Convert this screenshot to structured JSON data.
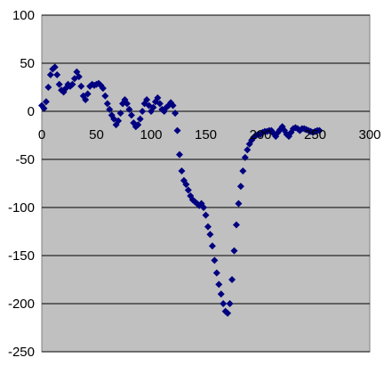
{
  "colors": {
    "plot_background": "#c0c0c0",
    "gridline": "#000000",
    "marker": "#000080"
  },
  "chart_data": {
    "type": "scatter",
    "marker": "diamond",
    "grid": "horizontal",
    "legend": "none",
    "title": "",
    "xlabel": "",
    "ylabel": "",
    "xlim": [
      0,
      300
    ],
    "ylim": [
      -250,
      100
    ],
    "x_ticks": [
      0,
      50,
      100,
      150,
      200,
      250,
      300
    ],
    "x_tick_labels": [
      "0",
      "50",
      "100",
      "150",
      "200",
      "250",
      "300"
    ],
    "y_ticks": [
      100,
      50,
      0,
      -50,
      -100,
      -150,
      -200,
      -250
    ],
    "y_tick_labels": [
      "100",
      "50",
      "0",
      "-50",
      "-100",
      "-150",
      "-200",
      "-250"
    ],
    "series": [
      {
        "x": [
          0,
          2,
          4,
          6,
          8,
          10,
          12,
          14,
          16,
          18,
          20,
          22,
          24,
          26,
          28,
          30,
          32,
          34,
          36,
          38,
          40,
          42,
          44,
          46,
          48,
          50,
          52,
          54,
          56,
          58,
          60,
          62,
          64,
          66,
          68,
          70,
          72,
          74,
          76,
          78,
          80,
          82,
          84,
          86,
          88,
          90,
          92,
          94,
          96,
          98,
          100,
          102,
          104,
          106,
          108,
          110,
          112,
          114,
          116,
          118,
          120,
          122,
          124,
          126,
          128,
          130,
          132,
          134,
          136,
          138,
          140,
          142,
          144,
          146,
          148,
          150,
          152,
          154,
          156,
          158,
          160,
          162,
          164,
          166,
          168,
          170,
          172,
          174,
          176,
          178,
          180,
          182,
          184,
          186,
          188,
          190,
          192,
          194,
          196,
          198,
          200,
          202,
          204,
          206,
          208,
          210,
          212,
          214,
          216,
          218,
          220,
          222,
          224,
          226,
          228,
          230,
          232,
          234,
          236,
          238,
          240,
          242,
          244,
          246,
          248,
          250,
          252,
          254
        ],
        "y": [
          6,
          3,
          10,
          25,
          38,
          44,
          46,
          38,
          28,
          22,
          20,
          24,
          28,
          26,
          28,
          34,
          41,
          36,
          26,
          16,
          12,
          18,
          26,
          28,
          27,
          28,
          29,
          27,
          24,
          16,
          8,
          2,
          -4,
          -8,
          -14,
          -10,
          -2,
          8,
          12,
          8,
          2,
          -4,
          -12,
          -16,
          -14,
          -8,
          0,
          8,
          12,
          6,
          0,
          4,
          10,
          14,
          8,
          2,
          0,
          4,
          6,
          9,
          6,
          -2,
          -20,
          -45,
          -62,
          -72,
          -76,
          -82,
          -88,
          -92,
          -94,
          -96,
          -98,
          -96,
          -100,
          -108,
          -120,
          -128,
          -140,
          -155,
          -168,
          -180,
          -190,
          -200,
          -208,
          -210,
          -200,
          -175,
          -145,
          -118,
          -96,
          -78,
          -62,
          -48,
          -40,
          -34,
          -30,
          -27,
          -25,
          -24,
          -24,
          -22,
          -21,
          -21,
          -20,
          -20,
          -23,
          -26,
          -22,
          -19,
          -16,
          -20,
          -24,
          -26,
          -22,
          -18,
          -17,
          -18,
          -20,
          -18,
          -18,
          -19,
          -20,
          -21,
          -22,
          -21,
          -20,
          -20
        ]
      }
    ]
  }
}
